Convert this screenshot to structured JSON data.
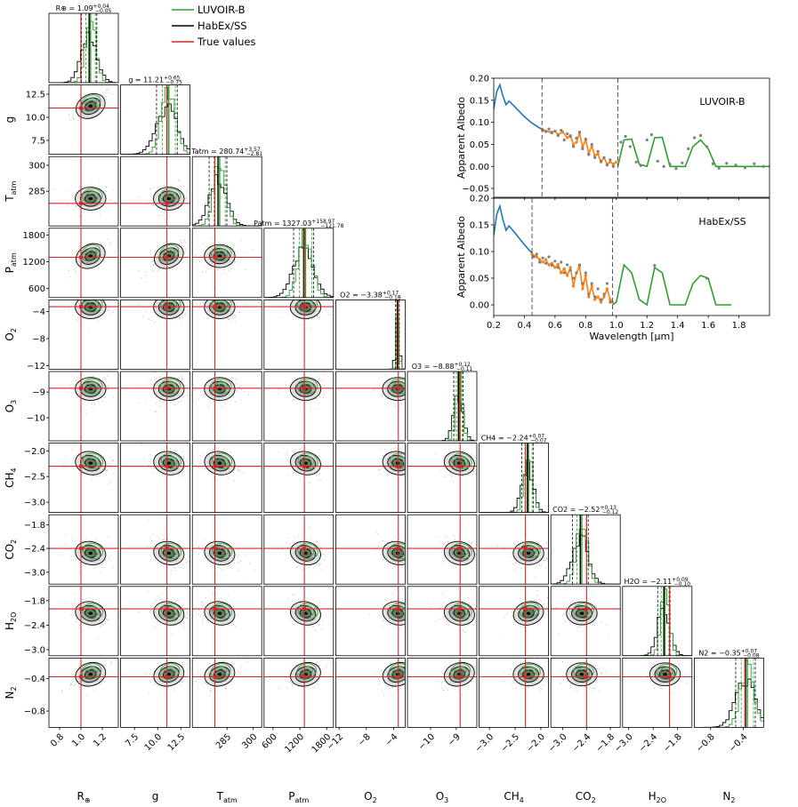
{
  "legend": [
    {
      "label": "LUVOIR-B",
      "color": "#2ca02c"
    },
    {
      "label": "HabEx/SS",
      "color": "#000000"
    },
    {
      "label": "True values",
      "color": "#d62728"
    }
  ],
  "colors": {
    "luvoir": "#2ca02c",
    "habex": "#000000",
    "truth": "#d62728",
    "model": "#1f77b4",
    "binned": "#ff7f0e",
    "points": "#808080"
  },
  "chart_data": [
    {
      "type": "corner",
      "parameters": [
        {
          "name": "R",
          "sub": "⊕",
          "label": "R⊕",
          "truth": 1.0,
          "median": 1.09,
          "plus": "+0.04",
          "minus": "−0.05",
          "title": "R⊕ = 1.09",
          "ticks": [
            "0.8",
            "1.0",
            "1.2"
          ],
          "tick_values": [
            0.8,
            1.0,
            1.2
          ],
          "range": [
            0.7,
            1.35
          ]
        },
        {
          "name": "g",
          "sub": "",
          "label": "g",
          "truth": 11.0,
          "median": 11.21,
          "plus": "+0.65",
          "minus": "−0.75",
          "title": "g = 11.21",
          "ticks": [
            "7.5",
            "10.0",
            "12.5"
          ],
          "tick_values": [
            7.5,
            10.0,
            12.5
          ],
          "range": [
            6.0,
            13.5
          ]
        },
        {
          "name": "T",
          "sub": "atm",
          "label": "Tatm",
          "truth": 278,
          "median": 280.74,
          "plus": "+3.57",
          "minus": "−2.81",
          "title": "Tatm = 280.74",
          "ticks": [
            "285",
            "300"
          ],
          "tick_values": [
            285,
            300
          ],
          "range": [
            265,
            305
          ]
        },
        {
          "name": "P",
          "sub": "atm",
          "label": "Patm",
          "truth": 1300,
          "median": 1327.03,
          "plus": "+158.97",
          "minus": "−121.78",
          "title": "Patm = 1327.03",
          "ticks": [
            "600",
            "1200",
            "1800"
          ],
          "tick_values": [
            600,
            1200,
            1800
          ],
          "range": [
            400,
            1950
          ]
        },
        {
          "name": "O",
          "sub": "2",
          "label": "O2",
          "truth": -3.3,
          "median": -3.38,
          "plus": "+0.17",
          "minus": "−0.18",
          "title": "O2 = −3.38",
          "ticks": [
            "−12",
            "−8",
            "−4"
          ],
          "tick_values": [
            -12,
            -8,
            -4
          ],
          "range": [
            -12.5,
            -2.3
          ]
        },
        {
          "name": "O",
          "sub": "3",
          "label": "O3",
          "truth": -8.85,
          "median": -8.88,
          "plus": "+0.12",
          "minus": "−0.11",
          "title": "O3 = −8.88",
          "ticks": [
            "−10",
            "−9"
          ],
          "tick_values": [
            -10,
            -9
          ],
          "range": [
            -10.9,
            -8.2
          ]
        },
        {
          "name": "CH",
          "sub": "4",
          "label": "CH4",
          "truth": -2.3,
          "median": -2.24,
          "plus": "+0.07",
          "minus": "−0.07",
          "title": "CH4 = −2.24",
          "ticks": [
            "−3.0",
            "−2.5",
            "−2.0"
          ],
          "tick_values": [
            -3.0,
            -2.5,
            -2.0
          ],
          "range": [
            -3.2,
            -1.85
          ]
        },
        {
          "name": "CO",
          "sub": "2",
          "label": "CO2",
          "truth": -2.4,
          "median": -2.52,
          "plus": "+0.13",
          "minus": "−0.12",
          "title": "CO2 = −2.52",
          "ticks": [
            "−3.0",
            "−2.4",
            "−1.8"
          ],
          "tick_values": [
            -3.0,
            -2.4,
            -1.8
          ],
          "range": [
            -3.3,
            -1.55
          ]
        },
        {
          "name": "H",
          "sub": "2O",
          "label": "H2O",
          "truth": -2.0,
          "median": -2.11,
          "plus": "+0.09",
          "minus": "−0.10",
          "title": "H2O = −2.11",
          "ticks": [
            "−3.0",
            "−2.4",
            "−1.8"
          ],
          "tick_values": [
            -3.0,
            -2.4,
            -1.8
          ],
          "range": [
            -3.15,
            -1.45
          ]
        },
        {
          "name": "N",
          "sub": "2",
          "label": "N2",
          "truth": -0.38,
          "median": -0.35,
          "plus": "+0.07",
          "minus": "−0.08",
          "title": "N2 = −0.35",
          "ticks": [
            "−0.8",
            "−0.4"
          ],
          "tick_values": [
            -0.8,
            -0.4
          ],
          "range": [
            -1.0,
            -0.15
          ]
        }
      ]
    },
    {
      "type": "line",
      "title": "LUVOIR-B",
      "xlabel": "Wavelength [μm]",
      "ylabel": "Apparent Albedo",
      "xlim": [
        0.2,
        2.0
      ],
      "ylim": [
        -0.07,
        0.2
      ],
      "yticks": [
        "0.20",
        "0.15",
        "0.10",
        "0.05",
        "0.00",
        "−0.05"
      ],
      "ytick_values": [
        0.2,
        0.15,
        0.1,
        0.05,
        0.0,
        -0.05
      ],
      "xticks": [
        "0.2",
        "0.4",
        "0.6",
        "0.8",
        "1.0",
        "1.2",
        "1.4",
        "1.6",
        "1.8"
      ],
      "xtick_values": [
        0.2,
        0.4,
        0.6,
        0.8,
        1.0,
        1.2,
        1.4,
        1.6,
        1.8
      ],
      "dashed_lines": [
        0.515,
        1.01
      ],
      "uv_model": {
        "x": [
          0.2,
          0.22,
          0.24,
          0.26,
          0.28,
          0.3,
          0.33,
          0.36,
          0.4,
          0.45,
          0.5,
          0.515
        ],
        "y": [
          0.13,
          0.17,
          0.185,
          0.16,
          0.14,
          0.148,
          0.138,
          0.127,
          0.113,
          0.098,
          0.087,
          0.085
        ]
      },
      "vis_fit": {
        "x": [
          0.515,
          0.54,
          0.57,
          0.6,
          0.62,
          0.65,
          0.68,
          0.7,
          0.72,
          0.74,
          0.76,
          0.78,
          0.8,
          0.82,
          0.84,
          0.86,
          0.88,
          0.9,
          0.92,
          0.94,
          0.96,
          0.98,
          1.0
        ],
        "y": [
          0.085,
          0.08,
          0.078,
          0.08,
          0.072,
          0.078,
          0.065,
          0.07,
          0.05,
          0.055,
          0.075,
          0.045,
          0.06,
          0.03,
          0.045,
          0.025,
          0.028,
          0.01,
          0.02,
          0.005,
          0.01,
          0.005,
          0.01
        ]
      },
      "nir_fit": {
        "x": [
          1.01,
          1.05,
          1.1,
          1.15,
          1.2,
          1.25,
          1.3,
          1.35,
          1.4,
          1.45,
          1.5,
          1.55,
          1.6,
          1.65,
          1.7,
          1.8,
          1.9,
          2.0
        ],
        "y": [
          0.0,
          0.06,
          0.062,
          0.005,
          0.0,
          0.065,
          0.066,
          0.0,
          0.0,
          0.0,
          0.045,
          0.06,
          0.04,
          0.0,
          0.0,
          0.0,
          0.0,
          0.0
        ]
      },
      "observed": {
        "x": [
          0.52,
          0.54,
          0.56,
          0.58,
          0.6,
          0.62,
          0.64,
          0.66,
          0.68,
          0.7,
          0.72,
          0.74,
          0.76,
          0.78,
          0.8,
          0.82,
          0.84,
          0.86,
          0.88,
          0.9,
          0.92,
          0.94,
          0.96,
          0.98,
          1.03,
          1.06,
          1.09,
          1.13,
          1.16,
          1.2,
          1.23,
          1.27,
          1.31,
          1.35,
          1.39,
          1.43,
          1.47,
          1.51,
          1.55,
          1.59,
          1.63,
          1.67,
          1.72,
          1.78,
          1.84,
          1.9,
          1.96
        ],
        "y": [
          0.082,
          0.079,
          0.085,
          0.076,
          0.08,
          0.07,
          0.082,
          0.06,
          0.074,
          0.068,
          0.045,
          0.064,
          0.078,
          0.04,
          0.062,
          0.027,
          0.05,
          0.02,
          0.034,
          0.012,
          0.02,
          0.003,
          0.015,
          0.0,
          0.055,
          0.068,
          0.045,
          0.01,
          0.002,
          0.06,
          0.072,
          0.012,
          0.0,
          0.005,
          -0.005,
          0.008,
          0.04,
          0.065,
          0.07,
          0.045,
          0.006,
          -0.004,
          0.007,
          0.003,
          -0.003,
          0.006,
          0.0
        ]
      }
    },
    {
      "type": "line",
      "title": "HabEx/SS",
      "xlabel": "Wavelength [μm]",
      "ylabel": "Apparent Albedo",
      "xlim": [
        0.2,
        2.0
      ],
      "ylim": [
        -0.02,
        0.2
      ],
      "yticks": [
        "0.20",
        "0.15",
        "0.10",
        "0.05",
        "0.00"
      ],
      "ytick_values": [
        0.2,
        0.15,
        0.1,
        0.05,
        0.0
      ],
      "xticks": [
        "0.2",
        "0.4",
        "0.6",
        "0.8",
        "1.0",
        "1.2",
        "1.4",
        "1.6",
        "1.8"
      ],
      "xtick_values": [
        0.2,
        0.4,
        0.6,
        0.8,
        1.0,
        1.2,
        1.4,
        1.6,
        1.8
      ],
      "dashed_lines": [
        0.45,
        0.975
      ],
      "uv_model": {
        "x": [
          0.2,
          0.22,
          0.24,
          0.26,
          0.28,
          0.3,
          0.33,
          0.36,
          0.4,
          0.44,
          0.45
        ],
        "y": [
          0.13,
          0.17,
          0.185,
          0.16,
          0.14,
          0.148,
          0.138,
          0.127,
          0.113,
          0.1,
          0.097
        ]
      },
      "vis_fit": {
        "x": [
          0.45,
          0.48,
          0.5,
          0.52,
          0.54,
          0.56,
          0.58,
          0.6,
          0.62,
          0.64,
          0.66,
          0.68,
          0.7,
          0.72,
          0.74,
          0.76,
          0.78,
          0.8,
          0.82,
          0.84,
          0.86,
          0.88,
          0.9,
          0.92,
          0.94,
          0.96,
          0.975
        ],
        "y": [
          0.095,
          0.09,
          0.085,
          0.08,
          0.085,
          0.075,
          0.078,
          0.07,
          0.076,
          0.06,
          0.068,
          0.055,
          0.07,
          0.035,
          0.06,
          0.072,
          0.03,
          0.055,
          0.015,
          0.035,
          0.01,
          0.015,
          0.005,
          0.015,
          0.03,
          0.01,
          0.005
        ]
      },
      "nir_fit": {
        "x": [
          0.975,
          1.0,
          1.05,
          1.1,
          1.15,
          1.2,
          1.25,
          1.3,
          1.35,
          1.4,
          1.45,
          1.5,
          1.55,
          1.6,
          1.65,
          1.7,
          1.75
        ],
        "y": [
          0.0,
          0.005,
          0.075,
          0.06,
          0.01,
          0.0,
          0.07,
          0.06,
          0.0,
          0.0,
          0.0,
          0.04,
          0.055,
          0.05,
          0.0,
          0.0,
          0.0
        ]
      },
      "observed": {
        "x": [
          0.46,
          0.48,
          0.5,
          0.52,
          0.54,
          0.56,
          0.58,
          0.6,
          0.62,
          0.64,
          0.66,
          0.68,
          0.7,
          0.72,
          0.74,
          0.76,
          0.78,
          0.8,
          0.82,
          0.84,
          0.86,
          0.88,
          0.9,
          0.92,
          0.94,
          0.96,
          1.25,
          1.59
        ],
        "y": [
          0.09,
          0.095,
          0.08,
          0.088,
          0.078,
          0.09,
          0.074,
          0.082,
          0.07,
          0.08,
          0.06,
          0.075,
          0.065,
          0.05,
          0.06,
          0.075,
          0.04,
          0.06,
          0.02,
          0.04,
          0.015,
          0.03,
          0.01,
          0.02,
          0.04,
          0.005,
          0.074,
          0.05
        ]
      }
    }
  ]
}
